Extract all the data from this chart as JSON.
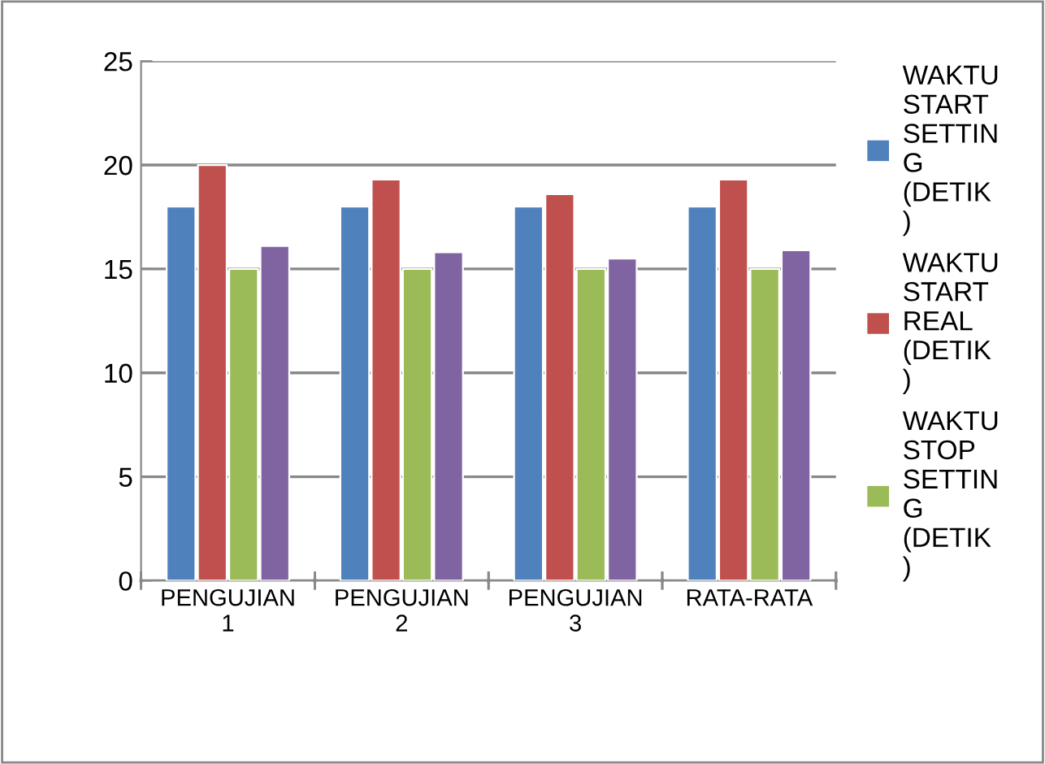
{
  "chart_data": {
    "type": "bar",
    "categories": [
      "PENGUJIAN 1",
      "PENGUJIAN 2",
      "PENGUJIAN 3",
      "RATA-RATA"
    ],
    "series": [
      {
        "name": "WAKTU START SETTING (DETIK)",
        "color": "#4f81bd",
        "values": [
          18,
          18,
          18,
          18
        ]
      },
      {
        "name": "WAKTU START REAL (DETIK)",
        "color": "#c0504d",
        "values": [
          20,
          19.3,
          18.6,
          19.3
        ]
      },
      {
        "name": "WAKTU STOP SETTING (DETIK)",
        "color": "#9bbb59",
        "values": [
          15,
          15,
          15,
          15
        ]
      },
      {
        "color": "#8064a2",
        "values": [
          16.1,
          15.8,
          15.5,
          15.9
        ]
      }
    ],
    "ylim": [
      0,
      25
    ],
    "yticks": [
      0,
      5,
      10,
      15,
      20,
      25
    ],
    "grid": "y",
    "legend": "right"
  }
}
